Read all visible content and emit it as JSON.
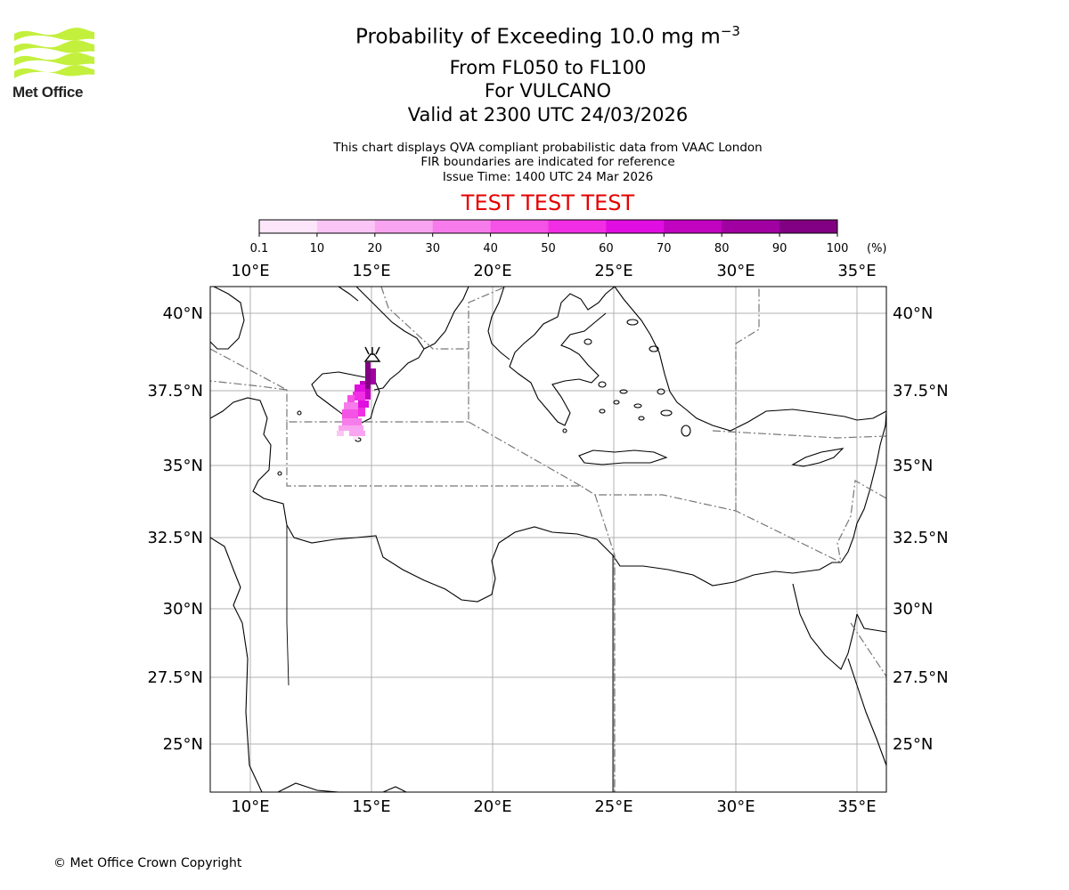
{
  "logo": {
    "text": "Met Office",
    "color": "#c3f03c"
  },
  "title": {
    "main_prefix": "Probability of Exceeding 10.0 mg m",
    "main_exp": "−3",
    "level": "From FL050 to FL100",
    "volcano": "For VULCANO",
    "valid": "Valid at 2300 UTC 24/03/2026",
    "note1": "This chart displays QVA compliant probabilistic data from VAAC London",
    "note2": "FIR boundaries are indicated for reference",
    "issue": "Issue Time: 1400 UTC 24 Mar 2026",
    "test_banner": "TEST TEST TEST"
  },
  "colorbar": {
    "ticks": [
      "0.1",
      "10",
      "20",
      "30",
      "40",
      "50",
      "60",
      "70",
      "80",
      "90",
      "100"
    ],
    "unit": "(%)",
    "colors": [
      "#fde6fa",
      "#fbc6f5",
      "#f9a4f0",
      "#f77ceb",
      "#f552e6",
      "#f22ee4",
      "#e00ee0",
      "#c004c0",
      "#a001a0",
      "#820082"
    ]
  },
  "map": {
    "lon_labels": [
      "10°E",
      "15°E",
      "20°E",
      "25°E",
      "30°E",
      "35°E"
    ],
    "lat_labels": [
      "40°N",
      "37.5°N",
      "35°N",
      "32.5°N",
      "30°N",
      "27.5°N",
      "25°N"
    ],
    "volcano_name": "VULCANO"
  },
  "footer": {
    "copyright": "© Met Office Crown Copyright"
  }
}
